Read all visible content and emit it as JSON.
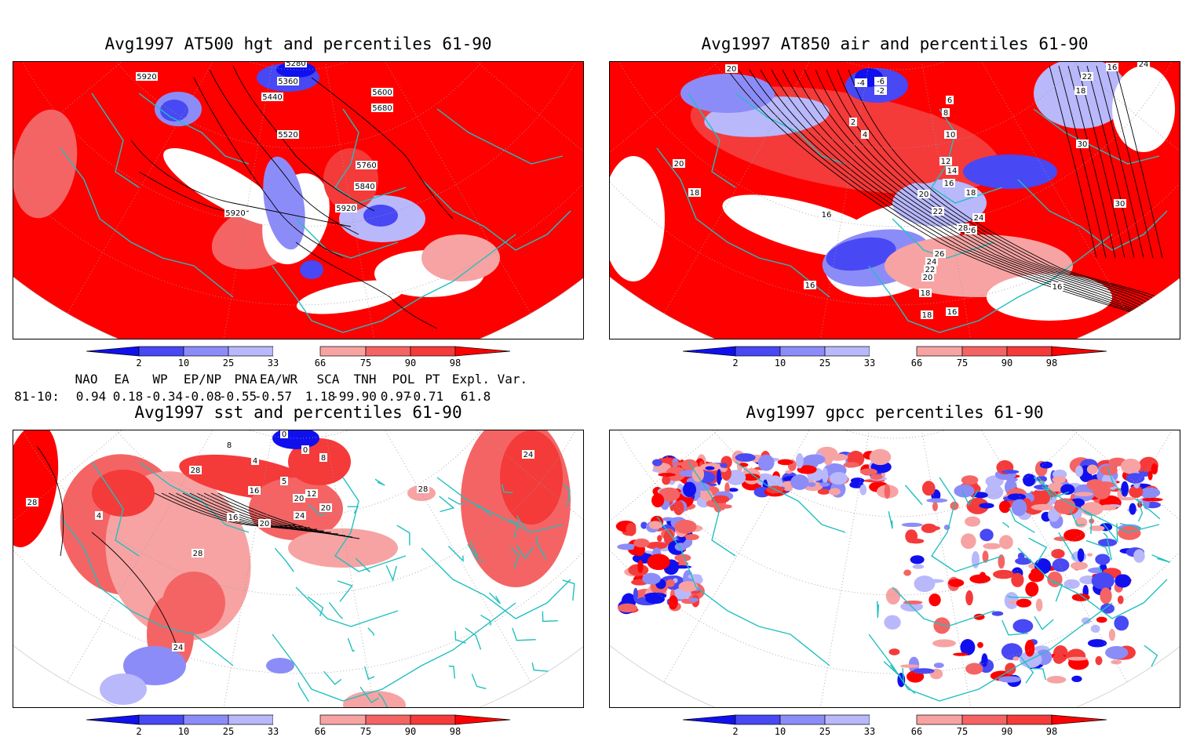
{
  "colors": {
    "blue_dark": "#1010ee",
    "blue_mid": "#4848f4",
    "blue_light": "#8c8cf8",
    "blue_pale": "#b8b8fb",
    "red_pale": "#f7a3a3",
    "red_light": "#f46464",
    "red_mid": "#f53a3a",
    "red_dark": "#ff0000",
    "coast": "#20c0c0",
    "frame": "#000000"
  },
  "panels": [
    {
      "title": "Avg1997 AT500 hgt and percentiles 61-90",
      "contour_labels": [
        "5280",
        "5360",
        "5920",
        "5440",
        "5600",
        "5680",
        "5520",
        "5760",
        "5840",
        "5920",
        "5920"
      ]
    },
    {
      "title": "Avg1997 AT850 air and percentiles 61-90",
      "contour_labels": [
        "20",
        "-6",
        "24",
        "16",
        "22",
        "18",
        "-2",
        "-4",
        "6",
        "8",
        "2",
        "4",
        "10",
        "12",
        "14",
        "16",
        "18",
        "30",
        "20",
        "18",
        "16",
        "20",
        "22",
        "24",
        "26",
        "28",
        "26",
        "24",
        "22",
        "20",
        "18",
        "16",
        "16",
        "18",
        "16",
        "30"
      ]
    },
    {
      "title": "Avg1997 sst and percentiles 61-90",
      "contour_labels": [
        "0",
        "8",
        "0",
        "4",
        "8",
        "5",
        "12",
        "16",
        "20",
        "20",
        "24",
        "16",
        "20",
        "28",
        "28",
        "24",
        "28",
        "28",
        "24",
        "4"
      ]
    },
    {
      "title": "Avg1997 gpcc percentiles 61-90",
      "contour_labels": []
    }
  ],
  "colorbar": {
    "labels": [
      "2",
      "10",
      "25",
      "33",
      "66",
      "75",
      "90",
      "98"
    ]
  },
  "indices": {
    "headers": [
      "NAO",
      "EA",
      "WP",
      "EP/NP",
      "PNA",
      "EA/WR",
      "SCA",
      "TNH",
      "POL",
      "PT",
      "Expl. Var."
    ],
    "row_label": "81-10:",
    "values": [
      "0.94",
      "0.18",
      "-0.34",
      "-0.08",
      "-0.55",
      "-0.57",
      "1.18",
      "-99.90",
      "0.97",
      "-0.71",
      "61.8"
    ]
  }
}
